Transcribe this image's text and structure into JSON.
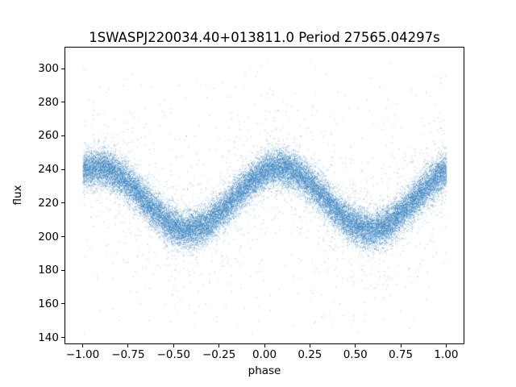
{
  "chart_data": {
    "type": "scatter",
    "title": "1SWASPJ220034.40+013811.0 Period 27565.04297s",
    "xlabel": "phase",
    "ylabel": "flux",
    "xlim": [
      -1.1,
      1.1
    ],
    "ylim": [
      136,
      313
    ],
    "xticks": [
      -1.0,
      -0.75,
      -0.5,
      -0.25,
      0.0,
      0.25,
      0.5,
      0.75,
      1.0
    ],
    "xtick_labels": [
      "−1.00",
      "−0.75",
      "−0.50",
      "−0.25",
      "0.00",
      "0.25",
      "0.50",
      "0.75",
      "1.00"
    ],
    "yticks": [
      140,
      160,
      180,
      200,
      220,
      240,
      260,
      280,
      300
    ],
    "ytick_labels": [
      "140",
      "160",
      "180",
      "200",
      "220",
      "240",
      "260",
      "280",
      "300"
    ],
    "grid": false,
    "legend": "none",
    "marker_color": "#3d85c0",
    "marker_size_px": 1,
    "marker_alpha": 0.55,
    "background": "#ffffff",
    "model": {
      "kind": "phase-folded sinusoidal light curve with gaussian scatter and outliers",
      "phase_range": [
        -1.0,
        1.0
      ],
      "n_points": 30000,
      "mean_flux": 223,
      "amplitude": 18.5,
      "peak_phase": 0.08,
      "trough_phase": 0.58,
      "peak_flux_center": 241.5,
      "trough_flux_center": 204.5,
      "band_noise_sigma": 5.5,
      "heavy_tail_fraction": 0.05,
      "heavy_tail_sigma": 22,
      "uniform_outlier_fraction": 0.009,
      "observed_flux_range": [
        140,
        305
      ]
    }
  }
}
